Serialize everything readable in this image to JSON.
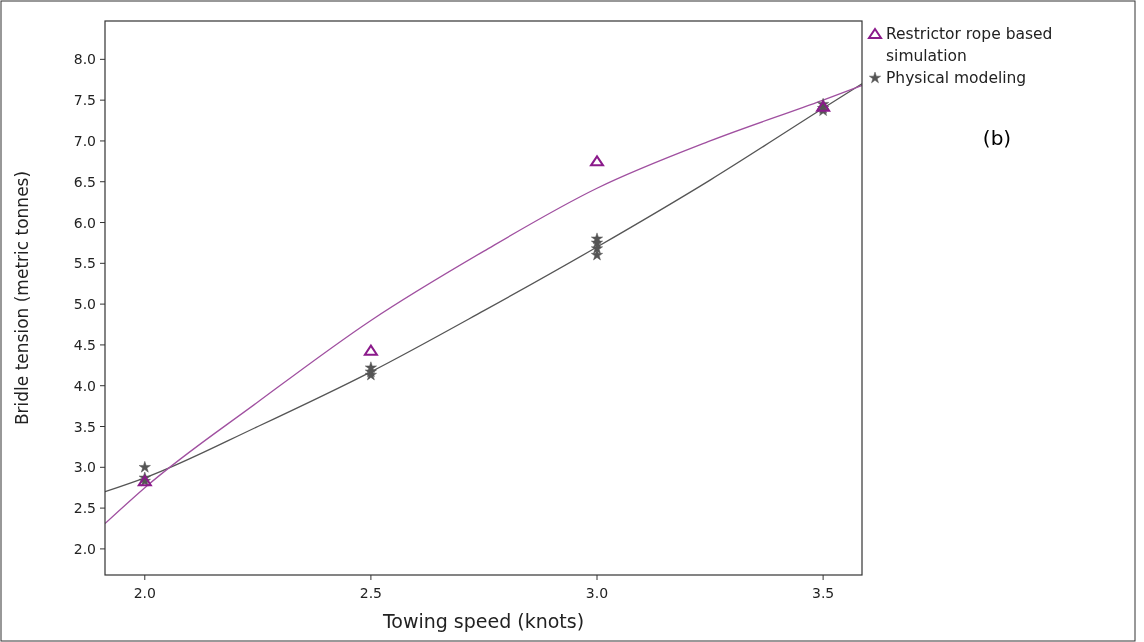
{
  "chart_data": {
    "type": "scatter",
    "xlabel": "Towing speed (knots)",
    "ylabel": "Bridle tension (metric tonnes)",
    "xlim": [
      1.912,
      3.586
    ],
    "xticks": [
      {
        "value": 2,
        "label": "2.0"
      },
      {
        "value": 2.5,
        "label": "2.5"
      },
      {
        "value": 3,
        "label": "3.0"
      },
      {
        "value": 3.5,
        "label": "3.5"
      }
    ],
    "ylim": [
      1.68,
      8.47
    ],
    "yticks": [
      {
        "value": 2,
        "label": "2.0"
      },
      {
        "value": 2.5,
        "label": "2.5"
      },
      {
        "value": 3,
        "label": "3.0"
      },
      {
        "value": 3.5,
        "label": "3.5"
      },
      {
        "value": 4,
        "label": "4.0"
      },
      {
        "value": 4.5,
        "label": "4.5"
      },
      {
        "value": 5,
        "label": "5.0"
      },
      {
        "value": 5.5,
        "label": "5.5"
      },
      {
        "value": 6,
        "label": "6.0"
      },
      {
        "value": 6.5,
        "label": "6.5"
      },
      {
        "value": 7,
        "label": "7.0"
      },
      {
        "value": 7.5,
        "label": "7.5"
      },
      {
        "value": 8,
        "label": "8.0"
      }
    ],
    "grid": false,
    "legend": "top right",
    "series": [
      {
        "name": "Restrictor rope based simulation",
        "type": "scatter",
        "marker": "triangle",
        "color": "#8b1a8b",
        "x": [
          2,
          2.5,
          3,
          3.5
        ],
        "values": [
          2.83,
          4.43,
          6.75,
          7.42
        ]
      },
      {
        "name": "Physical modeling",
        "type": "scatter",
        "marker": "star",
        "color": "#555555",
        "x": [
          2,
          2,
          2,
          2.5,
          2.5,
          2.5,
          3,
          3,
          3,
          3,
          3.5,
          3.5,
          3.5
        ],
        "values": [
          3.0,
          2.87,
          2.83,
          4.22,
          4.17,
          4.13,
          5.8,
          5.75,
          5.68,
          5.6,
          7.45,
          7.4,
          7.37
        ]
      },
      {
        "type": "line",
        "marker": "none",
        "line_style": "solid",
        "color": "#a050a0",
        "x": [
          1.912,
          2,
          2.25,
          2.5,
          2.75,
          3,
          3.25,
          3.5,
          3.586
        ],
        "values": [
          2.31,
          2.75,
          3.8,
          4.8,
          5.65,
          6.42,
          7.0,
          7.5,
          7.68
        ]
      },
      {
        "type": "line",
        "marker": "none",
        "line_style": "solid",
        "color": "#555555",
        "x": [
          1.912,
          2,
          2.25,
          2.5,
          2.75,
          3,
          3.25,
          3.5,
          3.586
        ],
        "values": [
          2.7,
          2.87,
          3.5,
          4.17,
          4.92,
          5.7,
          6.52,
          7.4,
          7.7
        ]
      }
    ],
    "annotations": [
      "(b)"
    ]
  }
}
